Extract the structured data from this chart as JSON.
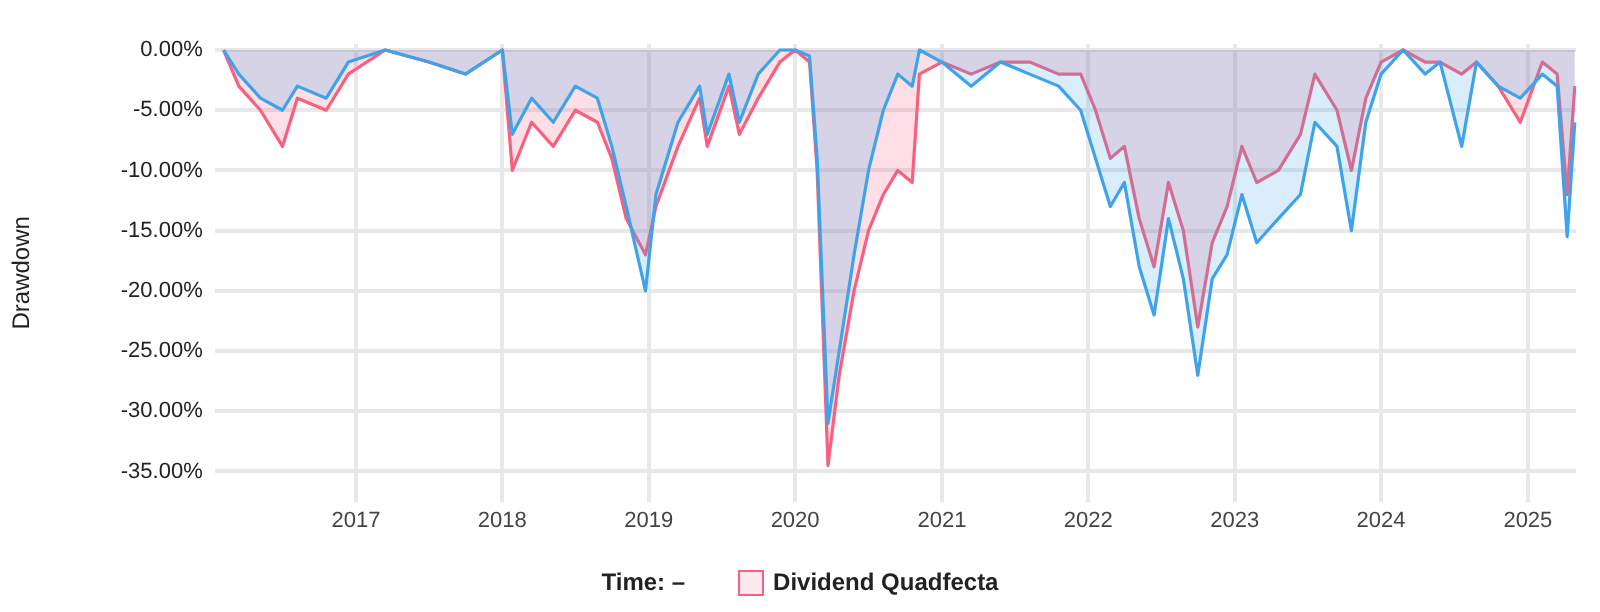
{
  "chart_data": {
    "type": "area",
    "ylabel": "Drawdown",
    "annotations": [
      "Time: –"
    ],
    "xlim": [
      "2016-01-15",
      "2025-05-01"
    ],
    "xticks": [
      "2017",
      "2018",
      "2019",
      "2020",
      "2021",
      "2022",
      "2023",
      "2024",
      "2025"
    ],
    "ylim": [
      -37.5,
      0.5
    ],
    "yticks": [
      {
        "value": 0,
        "label": "0.00%"
      },
      {
        "value": -5,
        "label": "-5.00%"
      },
      {
        "value": -10,
        "label": "-10.00%"
      },
      {
        "value": -15,
        "label": "-15.00%"
      },
      {
        "value": -20,
        "label": "-20.00%"
      },
      {
        "value": -25,
        "label": "-25.00%"
      },
      {
        "value": -30,
        "label": "-30.00%"
      },
      {
        "value": -35,
        "label": "-35.00%"
      }
    ],
    "grid": true,
    "legend": "bottom",
    "marker": "none",
    "line_style": "solid",
    "x": [
      "2016-02-06",
      "2016-03-15",
      "2016-05-08",
      "2016-07-02",
      "2016-08-08",
      "2016-10-19",
      "2016-12-13",
      "2017-03-15",
      "2017-07-02",
      "2017-10-01",
      "2018-01-01",
      "2018-01-26",
      "2018-03-15",
      "2018-05-08",
      "2018-07-02",
      "2018-08-26",
      "2018-10-01",
      "2018-11-06",
      "2018-12-24",
      "2019-01-19",
      "2019-03-15",
      "2019-05-08",
      "2019-05-27",
      "2019-07-20",
      "2019-08-15",
      "2019-10-01",
      "2019-11-24",
      "2020-01-01",
      "2020-02-06",
      "2020-02-25",
      "2020-03-23",
      "2020-04-20",
      "2020-05-27",
      "2020-07-02",
      "2020-08-08",
      "2020-09-13",
      "2020-10-19",
      "2020-11-06",
      "2021-01-01",
      "2021-03-15",
      "2021-05-27",
      "2021-08-08",
      "2021-10-19",
      "2021-12-13",
      "2022-01-19",
      "2022-02-25",
      "2022-04-01",
      "2022-05-08",
      "2022-06-14",
      "2022-07-20",
      "2022-08-26",
      "2022-10-01",
      "2022-11-06",
      "2022-12-13",
      "2023-01-19",
      "2023-02-25",
      "2023-04-20",
      "2023-06-14",
      "2023-07-20",
      "2023-09-13",
      "2023-10-19",
      "2023-11-24",
      "2024-01-01",
      "2024-02-25",
      "2024-04-20",
      "2024-05-27",
      "2024-07-20",
      "2024-08-26",
      "2024-10-19",
      "2024-12-13",
      "2025-02-06",
      "2025-03-15",
      "2025-04-09",
      "2025-04-28"
    ],
    "series": [
      {
        "color": "#3fa3ea",
        "values": [
          0,
          -2,
          -4,
          -5,
          -3,
          -4,
          -1,
          0,
          -1,
          -2,
          0,
          -7,
          -4,
          -6,
          -3,
          -4,
          -8,
          -13,
          -20,
          -12,
          -6,
          -3,
          -7,
          -2,
          -6,
          -2,
          0,
          0,
          -0.5,
          -9,
          -31,
          -25,
          -17,
          -10,
          -5,
          -2,
          -3,
          0,
          -1,
          -3,
          -1,
          -2,
          -3,
          -5,
          -9,
          -13,
          -11,
          -18,
          -22,
          -14,
          -19,
          -27,
          -19,
          -17,
          -12,
          -16,
          -14,
          -12,
          -6,
          -8,
          -15,
          -6,
          -2,
          0,
          -2,
          -1,
          -8,
          -1,
          -3,
          -4,
          -2,
          -3,
          -15.5,
          -6
        ]
      },
      {
        "name": "Dividend Quadfecta",
        "color": "#f7607f",
        "values": [
          0,
          -3,
          -5,
          -8,
          -4,
          -5,
          -2,
          0,
          -1,
          -2,
          0,
          -10,
          -6,
          -8,
          -5,
          -6,
          -9,
          -14,
          -17,
          -13,
          -8,
          -4,
          -8,
          -3,
          -7,
          -4,
          -1,
          0,
          -1,
          -10,
          -34.5,
          -27,
          -20,
          -15,
          -12,
          -10,
          -11,
          -2,
          -1,
          -2,
          -1,
          -1,
          -2,
          -2,
          -5,
          -9,
          -8,
          -14,
          -18,
          -11,
          -15,
          -23,
          -16,
          -13,
          -8,
          -11,
          -10,
          -7,
          -2,
          -5,
          -10,
          -4,
          -1,
          0,
          -1,
          -1,
          -2,
          -1,
          -3,
          -6,
          -1,
          -2,
          -12,
          -3
        ]
      }
    ]
  }
}
